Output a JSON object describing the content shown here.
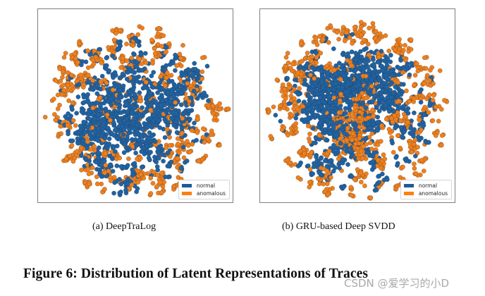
{
  "figure": {
    "caption": "Figure 6: Distribution of Latent Representations of Traces",
    "watermark": "CSDN @爱学习的小D"
  },
  "colors": {
    "normal": "#1f63a4",
    "normal_edge": "#2a3f55",
    "anomalous": "#f07f1c",
    "anomalous_edge": "#6e4b2a",
    "frame": "#7f7f7f"
  },
  "chart_data": [
    {
      "type": "scatter",
      "title": "(a) DeepTraLog",
      "subcaption": "(a) DeepTraLog",
      "xlabel": "",
      "ylabel": "",
      "axes_ticks": "none",
      "legend": {
        "position": "lower right",
        "entries": [
          "normal",
          "anomalous"
        ]
      },
      "description": "t-SNE-style projection; dense normal (blue) cluster core toward center-right, many small anomalous (orange) clusters scattered around the circular periphery",
      "series": [
        {
          "name": "normal",
          "color": "#1f63a4",
          "clusters": [
            [
              0.58,
              0.5,
              0.13,
              260
            ],
            [
              0.3,
              0.54,
              0.06,
              90
            ],
            [
              0.46,
              0.58,
              0.06,
              90
            ],
            [
              0.34,
              0.64,
              0.06,
              80
            ],
            [
              0.66,
              0.46,
              0.05,
              60
            ],
            [
              0.22,
              0.64,
              0.04,
              30
            ],
            [
              0.4,
              0.44,
              0.05,
              60
            ],
            [
              0.33,
              0.8,
              0.04,
              35
            ],
            [
              0.45,
              0.92,
              0.03,
              25
            ],
            [
              0.28,
              0.38,
              0.03,
              20
            ],
            [
              0.76,
              0.34,
              0.04,
              30
            ],
            [
              0.72,
              0.58,
              0.04,
              30
            ],
            [
              0.52,
              0.7,
              0.04,
              30
            ],
            [
              0.48,
              0.3,
              0.03,
              20
            ],
            [
              0.62,
              0.74,
              0.03,
              20
            ],
            [
              0.16,
              0.55,
              0.02,
              8
            ],
            [
              0.5,
              0.16,
              0.02,
              10
            ]
          ],
          "scatter_count": 140,
          "scatter_radius": 0.4
        },
        {
          "name": "anomalous",
          "color": "#f07f1c",
          "clusters": [
            [
              0.2,
              0.37,
              0.025,
              20
            ],
            [
              0.15,
              0.38,
              0.03,
              14
            ],
            [
              0.3,
              0.26,
              0.025,
              14
            ],
            [
              0.38,
              0.22,
              0.02,
              10
            ],
            [
              0.52,
              0.27,
              0.02,
              12
            ],
            [
              0.48,
              0.16,
              0.02,
              10
            ],
            [
              0.62,
              0.2,
              0.02,
              10
            ],
            [
              0.65,
              0.35,
              0.025,
              14
            ],
            [
              0.8,
              0.41,
              0.025,
              14
            ],
            [
              0.9,
              0.52,
              0.02,
              10
            ],
            [
              0.84,
              0.66,
              0.02,
              10
            ],
            [
              0.73,
              0.7,
              0.025,
              14
            ],
            [
              0.7,
              0.78,
              0.02,
              10
            ],
            [
              0.61,
              0.87,
              0.025,
              12
            ],
            [
              0.53,
              0.84,
              0.02,
              10
            ],
            [
              0.48,
              0.88,
              0.02,
              10
            ],
            [
              0.37,
              0.85,
              0.02,
              10
            ],
            [
              0.25,
              0.82,
              0.02,
              8
            ],
            [
              0.19,
              0.75,
              0.02,
              8
            ],
            [
              0.15,
              0.6,
              0.025,
              10
            ],
            [
              0.18,
              0.23,
              0.02,
              8
            ],
            [
              0.42,
              0.12,
              0.015,
              6
            ],
            [
              0.76,
              0.47,
              0.02,
              10
            ],
            [
              0.28,
              0.72,
              0.02,
              8
            ],
            [
              0.11,
              0.44,
              0.015,
              6
            ]
          ],
          "scatter_count": 200,
          "scatter_radius": 0.47
        }
      ]
    },
    {
      "type": "scatter",
      "title": "(b) GRU-based Deep SVDD",
      "subcaption": "(b) GRU-based Deep SVDD",
      "xlabel": "",
      "ylabel": "",
      "axes_ticks": "none",
      "legend": {
        "position": "lower right",
        "entries": [
          "normal",
          "anomalous"
        ]
      },
      "description": "t-SNE-style projection; large blue normal blobs in center, orange anomalous clusters both surrounding and adjoining the normal blobs (more overlap than (a))",
      "series": [
        {
          "name": "normal",
          "color": "#1f63a4",
          "clusters": [
            [
              0.4,
              0.45,
              0.09,
              220
            ],
            [
              0.5,
              0.35,
              0.07,
              150
            ],
            [
              0.29,
              0.4,
              0.06,
              90
            ],
            [
              0.66,
              0.46,
              0.06,
              120
            ],
            [
              0.63,
              0.32,
              0.05,
              70
            ],
            [
              0.38,
              0.62,
              0.05,
              70
            ],
            [
              0.28,
              0.53,
              0.05,
              60
            ],
            [
              0.56,
              0.6,
              0.04,
              40
            ],
            [
              0.43,
              0.72,
              0.04,
              40
            ],
            [
              0.33,
              0.8,
              0.035,
              30
            ],
            [
              0.5,
              0.27,
              0.03,
              20
            ],
            [
              0.74,
              0.28,
              0.025,
              15
            ],
            [
              0.74,
              0.62,
              0.03,
              20
            ],
            [
              0.58,
              0.78,
              0.025,
              15
            ],
            [
              0.22,
              0.3,
              0.02,
              10
            ]
          ],
          "scatter_count": 120,
          "scatter_radius": 0.42
        },
        {
          "name": "anomalous",
          "color": "#f07f1c",
          "clusters": [
            [
              0.48,
              0.68,
              0.06,
              110
            ],
            [
              0.42,
              0.58,
              0.03,
              30
            ],
            [
              0.52,
              0.52,
              0.035,
              40
            ],
            [
              0.55,
              0.42,
              0.025,
              20
            ],
            [
              0.52,
              0.1,
              0.025,
              16
            ],
            [
              0.44,
              0.14,
              0.025,
              16
            ],
            [
              0.31,
              0.16,
              0.02,
              12
            ],
            [
              0.58,
              0.16,
              0.02,
              12
            ],
            [
              0.7,
              0.18,
              0.02,
              12
            ],
            [
              0.16,
              0.31,
              0.025,
              14
            ],
            [
              0.15,
              0.42,
              0.03,
              16
            ],
            [
              0.2,
              0.51,
              0.02,
              10
            ],
            [
              0.17,
              0.62,
              0.025,
              12
            ],
            [
              0.22,
              0.74,
              0.02,
              10
            ],
            [
              0.32,
              0.88,
              0.02,
              10
            ],
            [
              0.52,
              0.86,
              0.02,
              10
            ],
            [
              0.62,
              0.8,
              0.025,
              14
            ],
            [
              0.78,
              0.7,
              0.02,
              10
            ],
            [
              0.7,
              0.55,
              0.025,
              16
            ],
            [
              0.82,
              0.45,
              0.02,
              10
            ],
            [
              0.86,
              0.38,
              0.02,
              8
            ],
            [
              0.7,
              0.38,
              0.02,
              10
            ],
            [
              0.26,
              0.26,
              0.025,
              14
            ],
            [
              0.36,
              0.3,
              0.02,
              10
            ],
            [
              0.1,
              0.5,
              0.015,
              6
            ],
            [
              0.8,
              0.84,
              0.015,
              6
            ]
          ],
          "scatter_count": 210,
          "scatter_radius": 0.47
        }
      ]
    }
  ],
  "panels": {
    "a": {
      "subcaption": "(a)  DeepTraLog",
      "legend": {
        "normal": "normal",
        "anomalous": "anomalous"
      }
    },
    "b": {
      "subcaption": "(b)  GRU-based Deep SVDD",
      "legend": {
        "normal": "normal",
        "anomalous": "anomalous"
      }
    }
  }
}
